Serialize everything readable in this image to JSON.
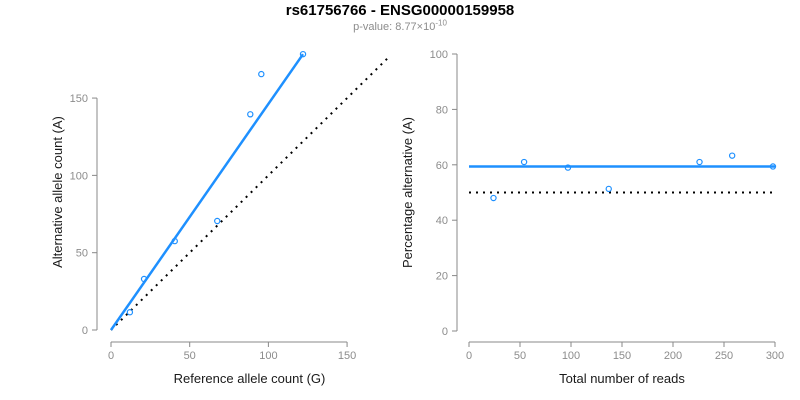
{
  "header": {
    "title": "rs61756766 - ENSG00000159958",
    "subtitle_prefix": "p-value: 8.77×10",
    "subtitle_exponent": "-10"
  },
  "colors": {
    "accent_blue": "#1E90FF",
    "reference_black": "#000000",
    "axis_gray": "#888888",
    "tick_label_gray": "#8C8C8C",
    "axis_title_color": "#1A1A1A",
    "subtitle_gray": "#8C8C8C",
    "background": "#FFFFFF"
  },
  "chart_data": [
    {
      "type": "scatter",
      "name": "allele-counts",
      "xlabel": "Reference allele count (G)",
      "ylabel": "Alternative allele count (A)",
      "xlim": [
        0,
        176
      ],
      "ylim": [
        0,
        178.5
      ],
      "xticks": [
        0,
        50,
        100,
        150
      ],
      "yticks": [
        0,
        50,
        100,
        150
      ],
      "grid": false,
      "points": [
        [
          12,
          11.5
        ],
        [
          21,
          33
        ],
        [
          40.5,
          57.5
        ],
        [
          67.5,
          70.5
        ],
        [
          88.5,
          139.5
        ],
        [
          95.5,
          165.5
        ],
        [
          122,
          178.4
        ]
      ],
      "lines": [
        {
          "name": "identity-line",
          "x1": 0,
          "y1": 0,
          "x2": 176,
          "y2": 176,
          "color": "#000000",
          "dash": "2 5",
          "width": 2
        },
        {
          "name": "fit-line",
          "x1": 0,
          "y1": 0,
          "x2": 122,
          "y2": 178.4,
          "color": "#1E90FF",
          "dash": null,
          "width": 2.5
        }
      ]
    },
    {
      "type": "scatter",
      "name": "percentage-alternative",
      "xlabel": "Total number of reads",
      "ylabel": "Percentage alternative (A)",
      "xlim": [
        0,
        300
      ],
      "ylim": [
        0,
        100
      ],
      "xticks": [
        0,
        50,
        100,
        150,
        200,
        250,
        300
      ],
      "yticks": [
        0,
        20,
        40,
        60,
        80,
        100
      ],
      "grid": false,
      "points": [
        [
          24,
          48
        ],
        [
          54,
          61
        ],
        [
          97,
          59
        ],
        [
          137,
          51.3
        ],
        [
          226,
          61
        ],
        [
          258,
          63.3
        ],
        [
          298,
          59.4
        ]
      ],
      "lines": [
        {
          "name": "null-line",
          "x1": 0,
          "y1": 50,
          "x2": 300,
          "y2": 50,
          "color": "#000000",
          "dash": "2 5",
          "width": 2
        },
        {
          "name": "fit-line",
          "x1": 0,
          "y1": 59.4,
          "x2": 300,
          "y2": 59.4,
          "color": "#1E90FF",
          "dash": null,
          "width": 2.5
        }
      ]
    }
  ]
}
